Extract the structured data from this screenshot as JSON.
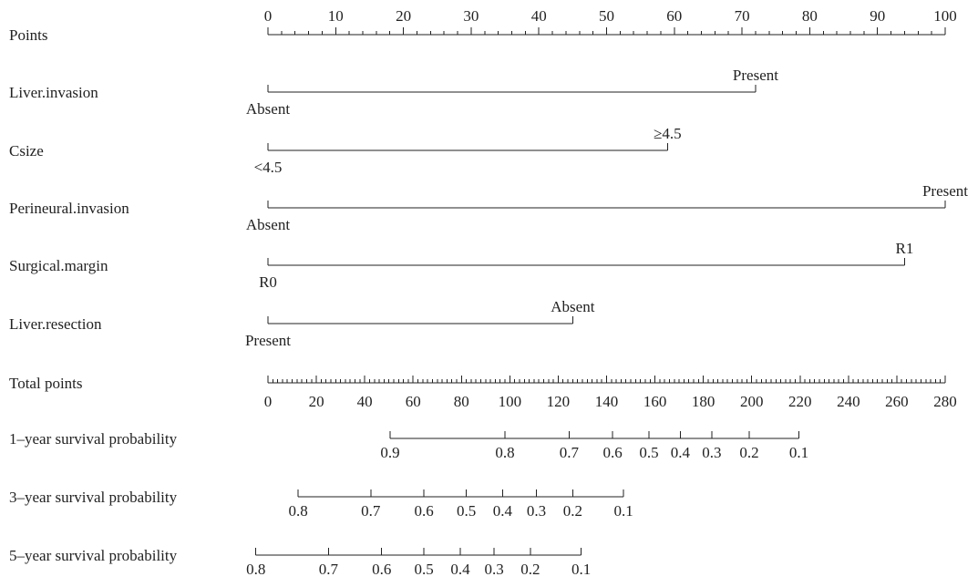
{
  "chart_data": {
    "type": "nomogram",
    "colors": {
      "ink": "#222222",
      "background": "#ffffff"
    },
    "points_scale": {
      "label": "Points",
      "range": [
        0,
        100
      ],
      "major_ticks": [
        0,
        10,
        20,
        30,
        40,
        50,
        60,
        70,
        80,
        90,
        100
      ],
      "minor_step": 2
    },
    "variables": [
      {
        "label": "Liver.invasion",
        "levels": [
          {
            "name": "Absent",
            "points": 0
          },
          {
            "name": "Present",
            "points": 72
          }
        ]
      },
      {
        "label": "Csize",
        "levels": [
          {
            "name": "<4.5",
            "points": 0
          },
          {
            "name": "≥4.5",
            "points": 59
          }
        ]
      },
      {
        "label": "Perineural.invasion",
        "levels": [
          {
            "name": "Absent",
            "points": 0
          },
          {
            "name": "Present",
            "points": 100
          }
        ]
      },
      {
        "label": "Surgical.margin",
        "levels": [
          {
            "name": "R0",
            "points": 0
          },
          {
            "name": "R1",
            "points": 94
          }
        ]
      },
      {
        "label": "Liver.resection",
        "levels": [
          {
            "name": "Present",
            "points": 0
          },
          {
            "name": "Absent",
            "points": 45
          }
        ]
      }
    ],
    "total_points_scale": {
      "label": "Total points",
      "range": [
        0,
        280
      ],
      "major_ticks": [
        0,
        20,
        40,
        60,
        80,
        100,
        120,
        140,
        160,
        180,
        200,
        220,
        240,
        260,
        280
      ],
      "minor_step": 2
    },
    "survival_scales": [
      {
        "label": "1–year survival probability",
        "ticks": [
          {
            "label": "0.9",
            "total_points": 50.5
          },
          {
            "label": "0.8",
            "total_points": 98
          },
          {
            "label": "0.7",
            "total_points": 124.5
          },
          {
            "label": "0.6",
            "total_points": 142.5
          },
          {
            "label": "0.5",
            "total_points": 157.5
          },
          {
            "label": "0.4",
            "total_points": 170.5
          },
          {
            "label": "0.3",
            "total_points": 183.5
          },
          {
            "label": "0.2",
            "total_points": 199
          },
          {
            "label": "0.1",
            "total_points": 219.5
          }
        ]
      },
      {
        "label": "3–year survival probability",
        "ticks": [
          {
            "label": "0.8",
            "total_points": 12.5
          },
          {
            "label": "0.7",
            "total_points": 42.5
          },
          {
            "label": "0.6",
            "total_points": 64.5
          },
          {
            "label": "0.5",
            "total_points": 82
          },
          {
            "label": "0.4",
            "total_points": 97
          },
          {
            "label": "0.3",
            "total_points": 111
          },
          {
            "label": "0.2",
            "total_points": 126
          },
          {
            "label": "0.1",
            "total_points": 147
          }
        ]
      },
      {
        "label": "5–year survival probability",
        "ticks": [
          {
            "label": "0.8",
            "total_points": -5
          },
          {
            "label": "0.7",
            "total_points": 25
          },
          {
            "label": "0.6",
            "total_points": 47
          },
          {
            "label": "0.5",
            "total_points": 64.5
          },
          {
            "label": "0.4",
            "total_points": 79.5
          },
          {
            "label": "0.3",
            "total_points": 93.5
          },
          {
            "label": "0.2",
            "total_points": 108.5
          },
          {
            "label": "0.1",
            "total_points": 129.5
          }
        ]
      }
    ]
  }
}
